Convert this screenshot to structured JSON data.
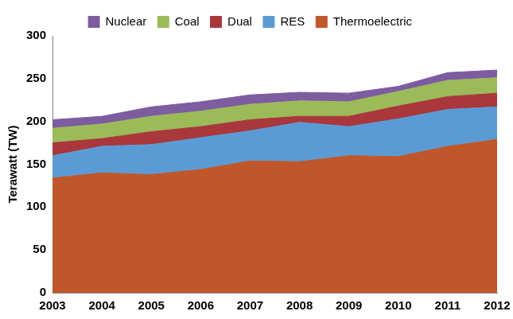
{
  "chart_data": {
    "type": "area",
    "y_label": "Terawatt (TW)",
    "categories": [
      "2003",
      "2004",
      "2005",
      "2006",
      "2007",
      "2008",
      "2009",
      "2010",
      "2011",
      "2012"
    ],
    "series": [
      {
        "name": "Thermoelectric",
        "color": "#c0572b",
        "values": [
          134,
          140,
          138,
          144,
          154,
          153,
          160,
          159,
          171,
          179
        ]
      },
      {
        "name": "RES",
        "color": "#5b9bd5",
        "values": [
          26,
          31,
          35,
          37,
          35,
          46,
          34,
          44,
          43,
          38
        ]
      },
      {
        "name": "Dual",
        "color": "#a9373b",
        "values": [
          15,
          9,
          15,
          13,
          13,
          7,
          12,
          15,
          15,
          16
        ]
      },
      {
        "name": "Coal",
        "color": "#9bbb59",
        "values": [
          17,
          17,
          18,
          18,
          18,
          18,
          17,
          17,
          19,
          18
        ]
      },
      {
        "name": "Nuclear",
        "color": "#7e5ca0",
        "values": [
          10,
          9,
          11,
          11,
          11,
          10,
          10,
          6,
          9,
          9
        ]
      }
    ],
    "ylim": [
      0,
      300
    ],
    "yticks": [
      0,
      50,
      100,
      150,
      200,
      250,
      300
    ],
    "stacked": true,
    "grid": false,
    "legend": "top"
  }
}
